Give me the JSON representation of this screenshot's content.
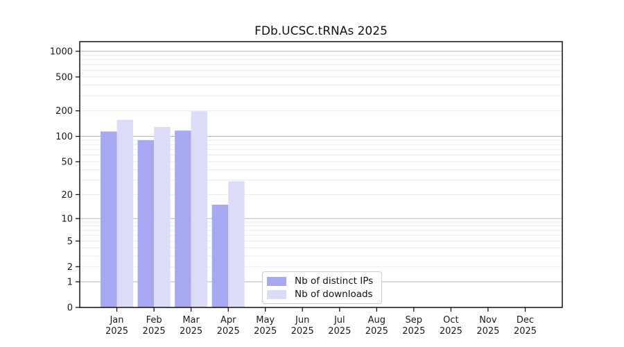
{
  "chart_data": {
    "type": "bar",
    "title": "FDb.UCSC.tRNAs 2025",
    "categories": [
      "Jan 2025",
      "Feb 2025",
      "Mar 2025",
      "Apr 2025",
      "May 2025",
      "Jun 2025",
      "Jul 2025",
      "Aug 2025",
      "Sep 2025",
      "Oct 2025",
      "Nov 2025",
      "Dec 2025"
    ],
    "series": [
      {
        "name": "Nb of distinct IPs",
        "color": "#a8a8f2",
        "values": [
          114,
          90,
          117,
          15,
          0,
          0,
          0,
          0,
          0,
          0,
          0,
          0
        ]
      },
      {
        "name": "Nb of downloads",
        "color": "#dcdcf8",
        "values": [
          157,
          129,
          197,
          29,
          0,
          0,
          0,
          0,
          0,
          0,
          0,
          0
        ]
      }
    ],
    "xlabel": "",
    "ylabel": "",
    "yticks": [
      0,
      1,
      2,
      5,
      10,
      20,
      50,
      100,
      200,
      500,
      1000
    ],
    "ylim": [
      0,
      1300
    ],
    "scale": "log1p",
    "grid": {
      "show": true,
      "major_values": [
        1,
        10,
        100,
        1000
      ],
      "major_color": "#b3b3b3",
      "minor_color": "#eaeaea"
    },
    "axis_color": "#000000",
    "text_color": "#1a1a1a",
    "legend": {
      "position": "bottom-center",
      "border_color": "#cccccc",
      "background": "rgba(255,255,255,0.85)"
    }
  }
}
